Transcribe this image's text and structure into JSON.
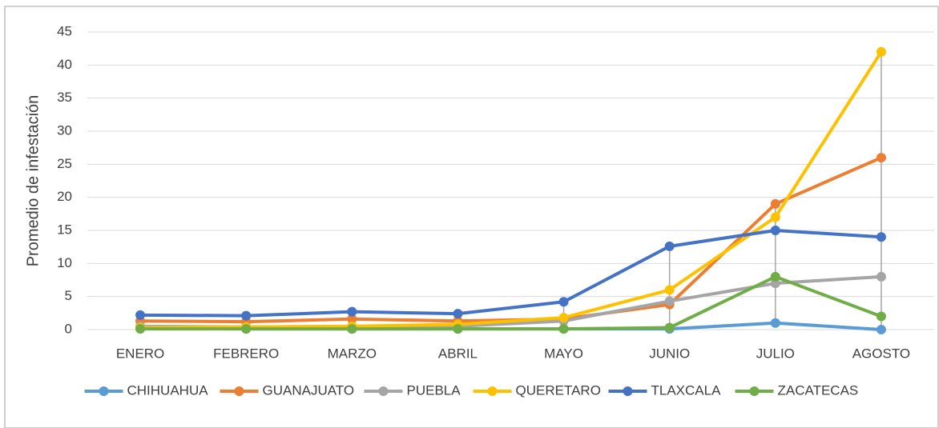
{
  "chart_data": {
    "type": "line",
    "y_label": "Promedio de infestación",
    "categories": [
      "ENERO",
      "FEBRERO",
      "MARZO",
      "ABRIL",
      "MAYO",
      "JUNIO",
      "JULIO",
      "AGOSTO"
    ],
    "series": [
      {
        "name": "CHIHUAHUA",
        "color": "#5b9bd5",
        "values": [
          0.2,
          0.1,
          0.1,
          0.1,
          0.1,
          0.1,
          1,
          0
        ]
      },
      {
        "name": "GUANAJUATO",
        "color": "#ed7d31",
        "values": [
          1.3,
          1.2,
          1.6,
          1.3,
          1.6,
          3.8,
          19,
          26
        ]
      },
      {
        "name": "PUEBLA",
        "color": "#a5a5a5",
        "values": [
          0.5,
          0.4,
          0.5,
          0.5,
          1.3,
          4.3,
          7,
          8
        ]
      },
      {
        "name": "QUERETARO",
        "color": "#ffc000",
        "values": [
          0.3,
          0.4,
          0.5,
          0.8,
          1.8,
          6,
          17,
          42
        ]
      },
      {
        "name": "TLAXCALA",
        "color": "#4472c4",
        "values": [
          2.2,
          2.1,
          2.7,
          2.4,
          4.2,
          12.6,
          15,
          14
        ]
      },
      {
        "name": "ZACATECAS",
        "color": "#70ad47",
        "values": [
          0.1,
          0.1,
          0.1,
          0.1,
          0.1,
          0.3,
          8,
          2
        ]
      }
    ],
    "ylim": [
      0,
      45
    ],
    "yticks": [
      0,
      5,
      10,
      15,
      20,
      25,
      30,
      35,
      40,
      45
    ],
    "grid": true,
    "high_low_lines": true,
    "legend": "bottom"
  }
}
